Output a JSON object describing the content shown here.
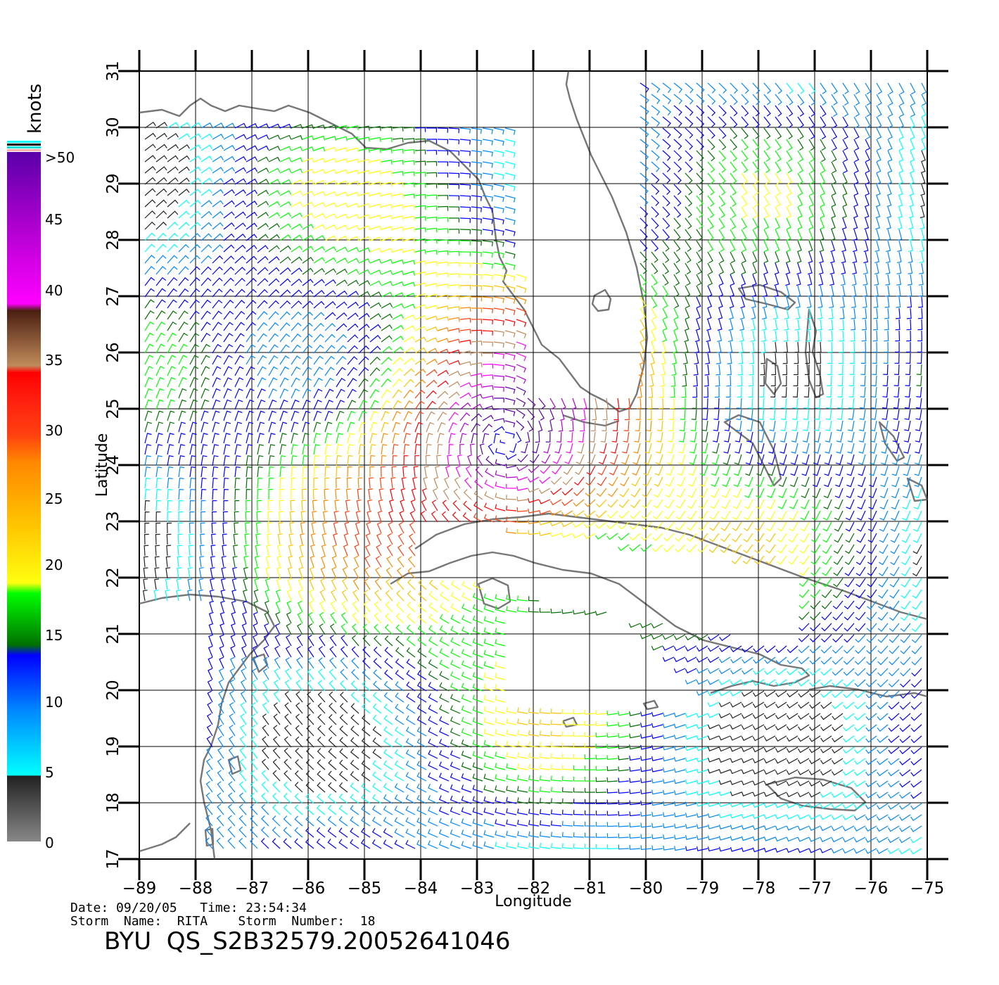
{
  "colorbar": {
    "unit": "knots",
    "labels": [
      ">50",
      "45",
      "40",
      "35",
      "30",
      "25",
      "20",
      "15",
      "10",
      "5",
      "0"
    ],
    "colors": {
      "over": "#5a00a8",
      "purple": "#b000d0",
      "magenta": "#ff00ff",
      "brown_dark": "#4a1f12",
      "brown_light": "#c08a5a",
      "red": "#ff0000",
      "red_orange": "#ff4010",
      "orange": "#ff8800",
      "yellow_orange": "#ffc400",
      "yellow": "#ffff10",
      "green_bright": "#00ff00",
      "green_dark": "#007000",
      "blue": "#0000ff",
      "blue_light": "#0088ff",
      "cyan": "#00ffff",
      "black": "#222222",
      "gray": "#888888"
    }
  },
  "map": {
    "xlabel": "Longitude",
    "ylabel": "Latitude",
    "lon_ticks": [
      "-89",
      "-88",
      "-87",
      "-86",
      "-85",
      "-84",
      "-83",
      "-82",
      "-81",
      "-80",
      "-79",
      "-78",
      "-77",
      "-76",
      "-75"
    ],
    "lat_ticks": [
      "17",
      "18",
      "19",
      "20",
      "21",
      "22",
      "23",
      "24",
      "25",
      "26",
      "27",
      "28",
      "29",
      "30",
      "31"
    ],
    "lon_range": [
      -89,
      -74.6
    ],
    "lat_range": [
      17,
      31
    ],
    "coast_color": "#777777",
    "grid_color": "#000000"
  },
  "meta": {
    "date_line": "Date: 09/20/05   Time: 23:54:34",
    "storm_line": "Storm  Name:  RITA    Storm  Number:  18",
    "file_id": "BYU  QS_S2B32579.20052641046"
  }
}
